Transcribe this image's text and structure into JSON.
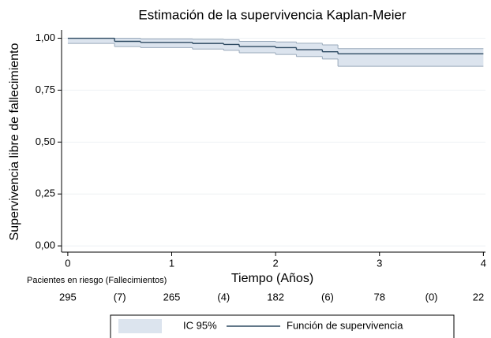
{
  "chart_data": {
    "type": "step",
    "title": "Estimación de la supervivencia Kaplan-Meier",
    "x_label": "Tiempo (Años)",
    "y_label": "Supervivencia libre de fallecimiento",
    "x": [
      0,
      0.45,
      0.7,
      1.2,
      1.5,
      1.65,
      2.0,
      2.2,
      2.45,
      2.6,
      4.0
    ],
    "series": [
      {
        "name": "Función de supervivencia",
        "color": "#2e4a62",
        "values": [
          1.0,
          0.985,
          0.98,
          0.975,
          0.97,
          0.96,
          0.955,
          0.945,
          0.935,
          0.925,
          0.915
        ]
      }
    ],
    "band": {
      "name": "IC 95%",
      "color": "#dce4ee",
      "edge": "#9aaabb",
      "lower": [
        0.975,
        0.96,
        0.955,
        0.948,
        0.942,
        0.93,
        0.922,
        0.912,
        0.9,
        0.865,
        0.865
      ],
      "upper": [
        1.0,
        1.0,
        0.997,
        0.995,
        0.993,
        0.985,
        0.982,
        0.976,
        0.968,
        0.95,
        0.95
      ]
    },
    "xlim": [
      -0.06,
      4.02
    ],
    "ylim": [
      -0.03,
      1.04
    ],
    "xticks": [
      0,
      1,
      2,
      3,
      4
    ],
    "yticks": [
      {
        "value": 0,
        "label": "0,00"
      },
      {
        "value": 0.25,
        "label": "0,25"
      },
      {
        "value": 0.5,
        "label": "0,50"
      },
      {
        "value": 0.75,
        "label": "0,75"
      },
      {
        "value": 1,
        "label": "1,00"
      }
    ],
    "grid": true,
    "risk_table": {
      "label": "Pacientes en riesgo (Fallecimientos)",
      "at_risk": [
        295,
        265,
        182,
        78,
        22
      ],
      "deaths": {
        "values": [
          7,
          4,
          6,
          0
        ],
        "value_labels": [
          "(7)",
          "(4)",
          "(6)",
          "(0)"
        ]
      }
    },
    "legend": "bottom"
  }
}
